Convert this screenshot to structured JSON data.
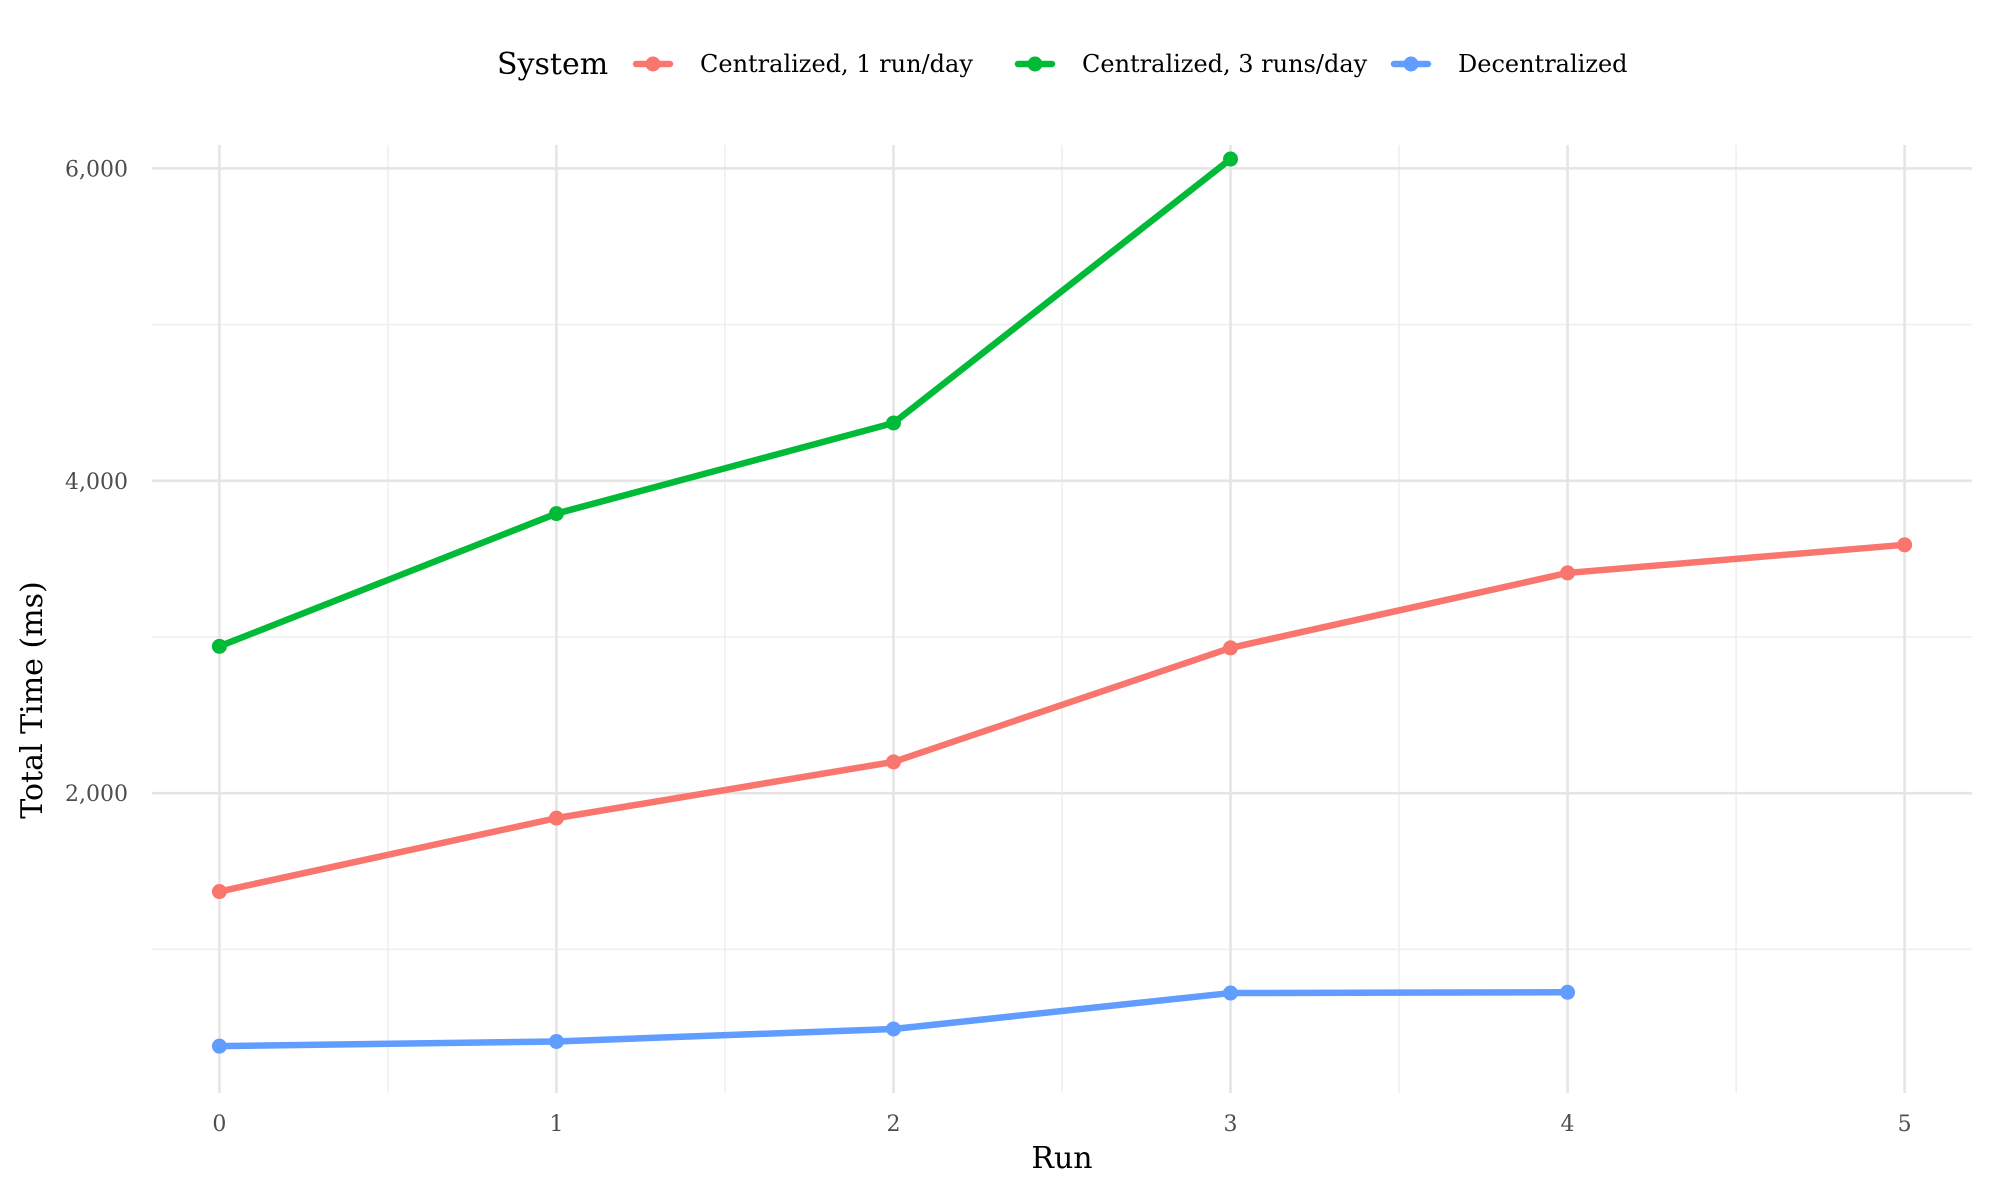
{
  "chart_data": {
    "type": "line",
    "title": "",
    "xlabel": "Run",
    "ylabel": "Total Time (ms)",
    "x": [
      0,
      1,
      2,
      3,
      4,
      5
    ],
    "xticks": [
      "0",
      "1",
      "2",
      "3",
      "4",
      "5"
    ],
    "xlim": [
      -0.2,
      5.2
    ],
    "yticks": [
      "2,000",
      "4,000",
      "6,000"
    ],
    "ytick_values": [
      2000,
      4000,
      6000
    ],
    "ylim": [
      80,
      6150
    ],
    "grid": true,
    "legend": {
      "title": "System",
      "position": "top"
    },
    "series": [
      {
        "name": "Centralized, 1 run/day",
        "color": "#F8766D",
        "x": [
          0,
          1,
          2,
          3,
          4,
          5
        ],
        "values": [
          1370,
          1840,
          2200,
          2930,
          3410,
          3590
        ]
      },
      {
        "name": "Centralized, 3 runs/day",
        "color": "#00BA38",
        "x": [
          0,
          1,
          2,
          3
        ],
        "values": [
          2940,
          3790,
          4370,
          6060
        ]
      },
      {
        "name": "Decentralized",
        "color": "#619CFF",
        "x": [
          0,
          1,
          2,
          3,
          4
        ],
        "values": [
          380,
          410,
          490,
          720,
          725
        ]
      }
    ]
  }
}
